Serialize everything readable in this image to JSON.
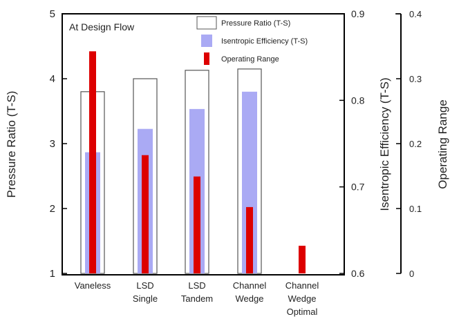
{
  "chart_data": {
    "type": "bar",
    "annotation": "At Design Flow",
    "categories": [
      [
        "Vaneless"
      ],
      [
        "LSD",
        "Single"
      ],
      [
        "LSD",
        "Tandem"
      ],
      [
        "Channel",
        "Wedge"
      ],
      [
        "Channel",
        "Wedge",
        "Optimal"
      ]
    ],
    "axes": {
      "left": {
        "label": "Pressure Ratio (T-S)",
        "range": [
          1,
          5
        ],
        "ticks": [
          "1",
          "2",
          "3",
          "4",
          "5"
        ]
      },
      "right1": {
        "label": "Isentropic Efficiency (T-S)",
        "range": [
          0.6,
          0.9
        ],
        "ticks": [
          "0.6",
          "0.7",
          "0.8",
          "0.9"
        ]
      },
      "right2": {
        "label": "Operating Range",
        "range": [
          0,
          0.45
        ],
        "ticks": [
          "0",
          "0.1",
          "0.2",
          "0.3",
          "0.4"
        ]
      }
    },
    "series": [
      {
        "name": "Pressure Ratio (T-S)",
        "axis": "left",
        "style": "outline",
        "color": "#555555",
        "values": [
          3.8,
          4.0,
          4.13,
          4.15,
          null
        ]
      },
      {
        "name": "Isentropic Efficiency (T-S)",
        "axis": "right1",
        "style": "fill",
        "color": "#aaaaf4",
        "values": [
          0.74,
          0.767,
          0.79,
          0.81,
          null
        ]
      },
      {
        "name": "Operating Range",
        "axis": "right2",
        "style": "fill",
        "color": "#dd0000",
        "values": [
          0.385,
          0.205,
          0.168,
          0.115,
          0.048
        ]
      }
    ],
    "legend": {
      "position": "top-right"
    },
    "grid": false
  }
}
